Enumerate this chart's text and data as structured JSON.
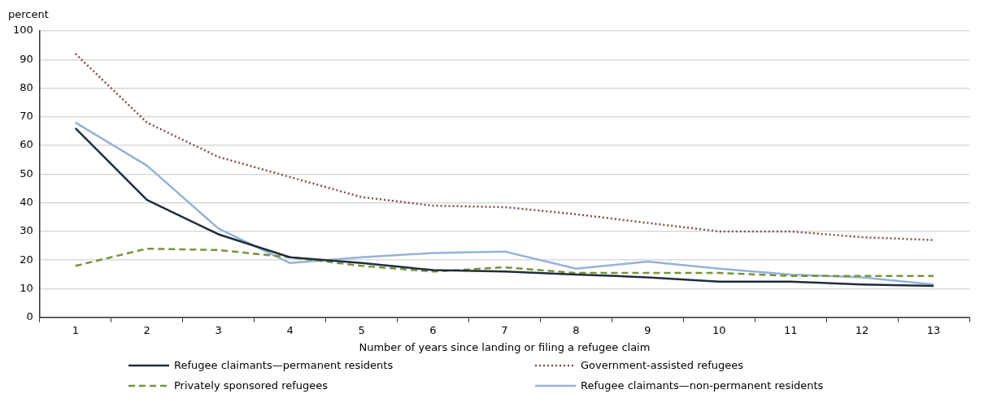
{
  "chart_data": {
    "type": "line",
    "ylabel": "percent",
    "xlabel": "Number of years since landing or filing a refugee claim",
    "categories": [
      "1",
      "2",
      "3",
      "4",
      "5",
      "6",
      "7",
      "8",
      "9",
      "10",
      "11",
      "12",
      "13"
    ],
    "ylim": [
      0,
      100
    ],
    "yticks": [
      0,
      10,
      20,
      30,
      40,
      50,
      60,
      70,
      80,
      90,
      100
    ],
    "grid": "y",
    "legend": "bottom",
    "marker": "none",
    "series": [
      {
        "name": "Refugee claimants—permanent residents",
        "color": "#1f2d3d",
        "line_style": "solid",
        "values": [
          66,
          41,
          29,
          21,
          19,
          16.5,
          16,
          15,
          14,
          12.5,
          12.5,
          11.5,
          11
        ]
      },
      {
        "name": "Government-assisted refugees",
        "color": "#8b4a4a",
        "line_style": "dotted",
        "values": [
          92,
          68,
          56,
          49,
          42,
          39,
          38.5,
          36,
          33,
          30,
          30,
          28,
          27
        ]
      },
      {
        "name": "Privately sponsored refugees",
        "color": "#77933c",
        "line_style": "dashed",
        "values": [
          18,
          24,
          23.5,
          21,
          18,
          16,
          17.5,
          15.5,
          15.5,
          15.5,
          14.5,
          14.5,
          14.5
        ]
      },
      {
        "name": "Refugee claimants—non-permanent residents",
        "color": "#95b3d7",
        "line_style": "solid",
        "values": [
          68,
          53,
          31,
          19,
          21,
          22.5,
          23,
          17,
          19.5,
          17,
          15,
          14,
          11.5
        ]
      }
    ]
  }
}
